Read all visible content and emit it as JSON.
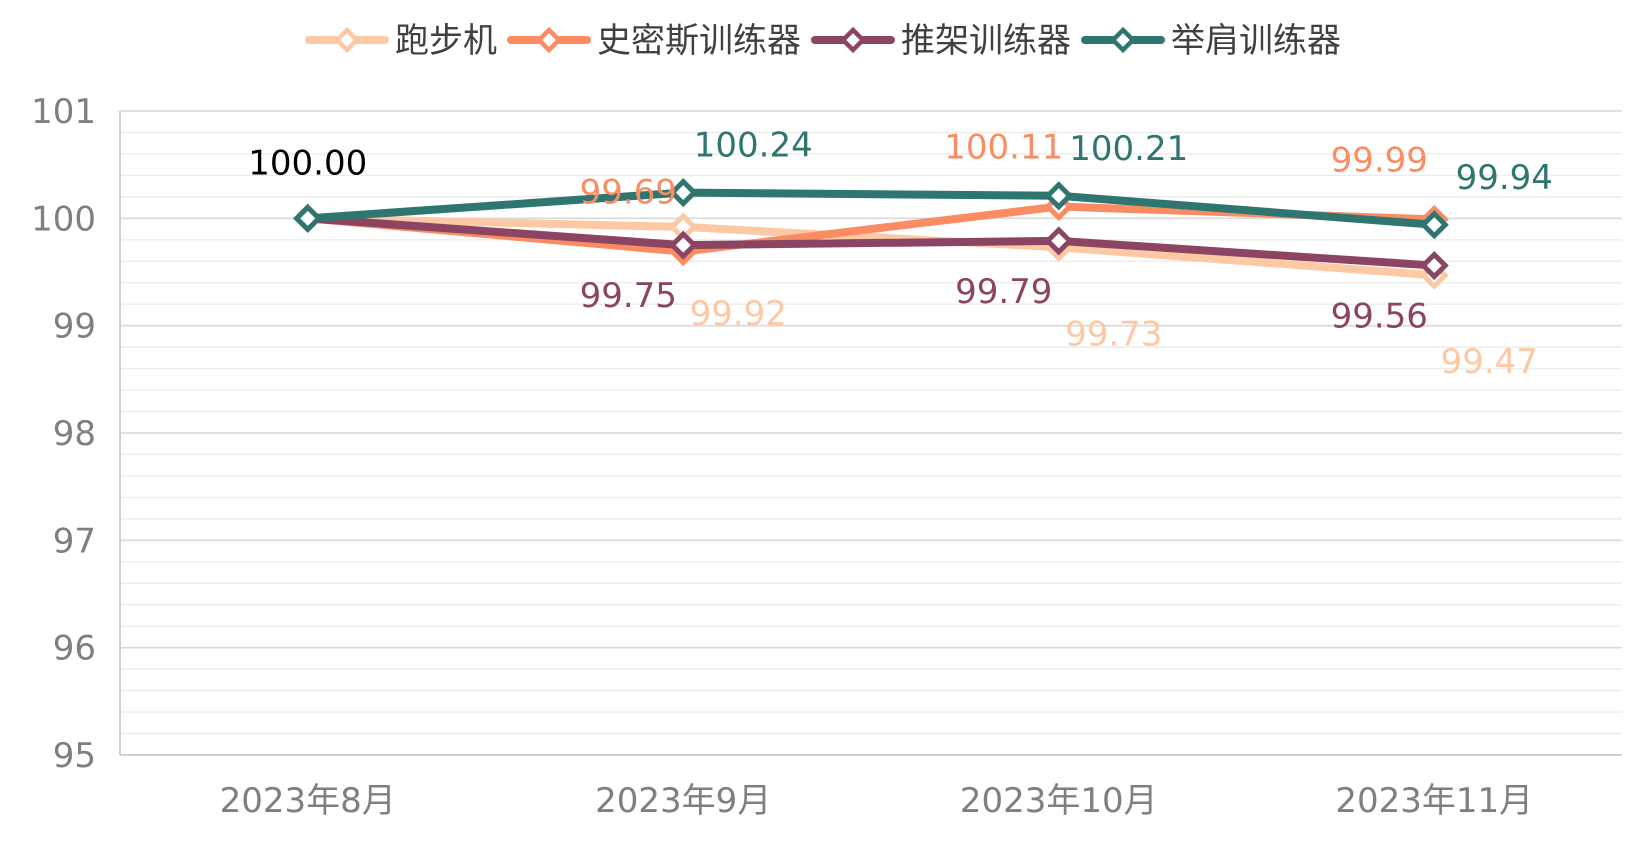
{
  "chart_data": {
    "type": "line",
    "title": "",
    "xlabel": "",
    "ylabel": "",
    "categories": [
      "2023年8月",
      "2023年9月",
      "2023年10月",
      "2023年11月"
    ],
    "ylim": [
      95,
      101
    ],
    "yticks": [
      "95",
      "96",
      "97",
      "98",
      "99",
      "100",
      "101"
    ],
    "grid": true,
    "legend_position": "top",
    "marker": "diamond",
    "series": [
      {
        "name": "跑步机",
        "color": "#FDC8A4",
        "values": [
          100.0,
          99.92,
          99.73,
          99.47
        ],
        "labels": [
          "",
          "99.92",
          "99.73",
          "99.47"
        ]
      },
      {
        "name": "史密斯训练器",
        "color": "#FA8C64",
        "values": [
          100.0,
          99.69,
          100.11,
          99.99
        ],
        "labels": [
          "",
          "99.69",
          "100.11",
          "99.99"
        ]
      },
      {
        "name": "推架训练器",
        "color": "#8B4461",
        "values": [
          100.0,
          99.75,
          99.79,
          99.56
        ],
        "labels": [
          "",
          "99.75",
          "99.79",
          "99.56"
        ]
      },
      {
        "name": "举肩训练器",
        "color": "#2F7670",
        "values": [
          100.0,
          100.24,
          100.21,
          99.94
        ],
        "labels": [
          "",
          "100.24",
          "100.21",
          "99.94"
        ]
      }
    ],
    "common_label": {
      "text": "100.00",
      "color": "#000000"
    }
  }
}
